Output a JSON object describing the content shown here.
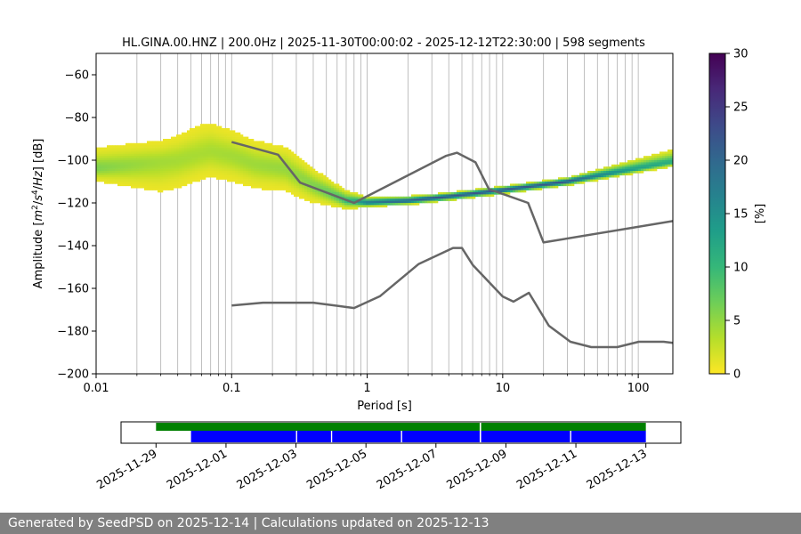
{
  "footer": {
    "text": "Generated by SeedPSD on 2025-12-14 | Calculations updated on 2025-12-13"
  },
  "chart_data": [
    {
      "type": "heatmap",
      "title": "HL.GINA.00.HNZ | 200.0Hz | 2025-11-30T00:00:02 - 2025-12-12T22:30:00 | 598 segments",
      "xlabel": "Period [s]",
      "ylabel_parts": [
        "Amplitude [",
        "m",
        "2",
        "/",
        "s",
        "4",
        "/",
        "Hz",
        "] [dB]"
      ],
      "x_scale": "log",
      "xlim": [
        0.01,
        180
      ],
      "ylim": [
        -200,
        -50
      ],
      "x_ticks": [
        {
          "value": 0.01,
          "label": "0.01"
        },
        {
          "value": 0.1,
          "label": "0.1"
        },
        {
          "value": 1,
          "label": "1"
        },
        {
          "value": 10,
          "label": "10"
        },
        {
          "value": 100,
          "label": "100"
        }
      ],
      "y_ticks": [
        {
          "value": -60,
          "label": "−60"
        },
        {
          "value": -80,
          "label": "−80"
        },
        {
          "value": -100,
          "label": "−100"
        },
        {
          "value": -120,
          "label": "−120"
        },
        {
          "value": -140,
          "label": "−140"
        },
        {
          "value": -160,
          "label": "−160"
        },
        {
          "value": -180,
          "label": "−180"
        },
        {
          "value": -200,
          "label": "−200"
        }
      ],
      "grid": "vertical",
      "colorbar": {
        "label": "[%]",
        "range": [
          0,
          30
        ],
        "ticks": [
          {
            "value": 0,
            "label": "0"
          },
          {
            "value": 5,
            "label": "5"
          },
          {
            "value": 10,
            "label": "10"
          },
          {
            "value": 15,
            "label": "15"
          },
          {
            "value": 20,
            "label": "20"
          },
          {
            "value": 25,
            "label": "25"
          },
          {
            "value": 30,
            "label": "30"
          }
        ],
        "colormap": [
          "#fde725",
          "#b5de2b",
          "#6ece58",
          "#35b779",
          "#1f9e89",
          "#26828e",
          "#31688e",
          "#3e4989",
          "#482878",
          "#440154"
        ]
      },
      "density_bands": [
        {
          "band": "mode",
          "points": [
            [
              0.01,
              -104
            ],
            [
              0.02,
              -102
            ],
            [
              0.04,
              -100
            ],
            [
              0.07,
              -96
            ],
            [
              0.1,
              -98
            ],
            [
              0.15,
              -102
            ],
            [
              0.25,
              -104
            ],
            [
              0.4,
              -112
            ],
            [
              0.7,
              -119
            ],
            [
              1,
              -120
            ],
            [
              2,
              -119
            ],
            [
              4,
              -117
            ],
            [
              10,
              -114
            ],
            [
              30,
              -110
            ],
            [
              100,
              -104
            ],
            [
              180,
              -101
            ]
          ]
        },
        {
          "band": "spread_up",
          "points": [
            [
              0.01,
              -10
            ],
            [
              0.03,
              -10
            ],
            [
              0.06,
              -14
            ],
            [
              0.1,
              -12
            ],
            [
              0.3,
              -10
            ],
            [
              0.7,
              -5
            ],
            [
              1,
              -3
            ],
            [
              3,
              -2
            ],
            [
              10,
              -2
            ],
            [
              30,
              -2
            ],
            [
              100,
              -5
            ],
            [
              180,
              -6
            ]
          ]
        },
        {
          "band": "spread_down",
          "points": [
            [
              0.01,
              -6
            ],
            [
              0.03,
              -14
            ],
            [
              0.06,
              -12
            ],
            [
              0.1,
              -12
            ],
            [
              0.3,
              -10
            ],
            [
              0.7,
              -4
            ],
            [
              1,
              -2
            ],
            [
              3,
              -2
            ],
            [
              10,
              -2
            ],
            [
              30,
              -2
            ],
            [
              100,
              -2
            ],
            [
              180,
              -2
            ]
          ]
        }
      ],
      "series": [
        {
          "role": "new-high-noise-model",
          "x": [
            0.1,
            0.22,
            0.32,
            0.8,
            3.8,
            4.6,
            6.3,
            7.9,
            15.4,
            20,
            180
          ],
          "y": [
            -91.5,
            -97.4,
            -110.5,
            -120,
            -98,
            -96.5,
            -101,
            -113.5,
            -120,
            -138.5,
            -128.5
          ]
        },
        {
          "role": "new-low-noise-model",
          "x": [
            0.1,
            0.17,
            0.4,
            0.8,
            1.24,
            2.4,
            4.3,
            5,
            6,
            10,
            12,
            15.6,
            21.9,
            31.6,
            45,
            70,
            101,
            154,
            180
          ],
          "y": [
            -168,
            -166.7,
            -166.7,
            -169.2,
            -163.7,
            -148.6,
            -141.1,
            -141.1,
            -149,
            -163.8,
            -166.2,
            -162.1,
            -177.5,
            -185,
            -187.5,
            -187.5,
            -185,
            -185,
            -185.5
          ]
        }
      ]
    },
    {
      "type": "timeline",
      "x_range": [
        "2025-11-28",
        "2025-12-14"
      ],
      "x_ticks": [
        "2025-11-29",
        "2025-12-01",
        "2025-12-03",
        "2025-12-05",
        "2025-12-07",
        "2025-12-09",
        "2025-12-11",
        "2025-12-13"
      ],
      "rows": [
        {
          "row": "upper",
          "color": "#008000",
          "spans": [
            [
              "2025-11-29T00:00",
              "2025-12-08T06:00"
            ],
            [
              "2025-12-08T07:00",
              "2025-12-12T23:59"
            ]
          ]
        },
        {
          "row": "lower",
          "color": "#0000ff",
          "spans": [
            [
              "2025-11-30T00:00",
              "2025-12-03T00:00"
            ],
            [
              "2025-12-03T00:50",
              "2025-12-04T00:00"
            ],
            [
              "2025-12-04T00:50",
              "2025-12-06T00:00"
            ],
            [
              "2025-12-06T00:50",
              "2025-12-08T06:00"
            ],
            [
              "2025-12-08T07:00",
              "2025-12-10T20:00"
            ],
            [
              "2025-12-10T20:50",
              "2025-12-12T23:59"
            ]
          ]
        }
      ],
      "gaps": [
        "2025-12-03",
        "2025-12-04",
        "2025-12-06",
        "2025-12-08",
        "2025-12-10"
      ]
    }
  ]
}
